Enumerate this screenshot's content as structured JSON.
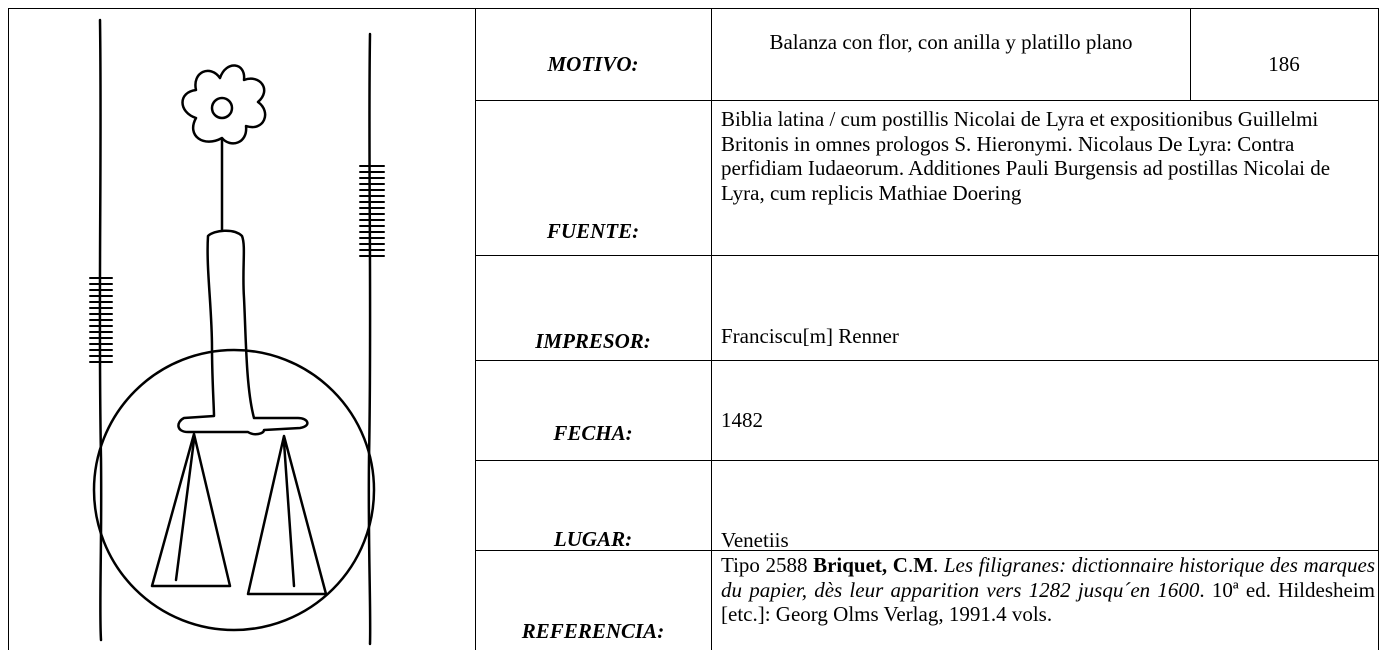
{
  "record": {
    "number": "186",
    "rows": [
      {
        "label": "MOTIVO:",
        "value": "Balanza con flor, con anilla y platillo plano"
      },
      {
        "label": "FUENTE:",
        "value": "Biblia latina / cum postillis Nicolai de Lyra et expositionibus Guillelmi Britonis in omnes prologos S. Hieronymi. Nicolaus De Lyra: Contra perfidiam Iudaeorum. Additiones Pauli Burgensis ad postillas Nicolai de Lyra, cum replicis Mathiae Doering"
      },
      {
        "label": "IMPRESOR:",
        "value": "Franciscu[m] Renner"
      },
      {
        "label": "FECHA:",
        "value": "1482"
      },
      {
        "label": "LUGAR:",
        "value": "Venetiis"
      },
      {
        "label": "REFERENCIA:",
        "value_parts": [
          "Tipo 2588 ",
          "Briquet, C",
          ".",
          "M",
          ". ",
          "Les filigranes: dictionnaire historique des marques du papier, dès leur apparition vers 1282 jusqu´en 1600",
          ". 10ª ed. Hildesheim [etc.]: Georg Olms Verlag, 1991.4 vols."
        ]
      }
    ]
  }
}
